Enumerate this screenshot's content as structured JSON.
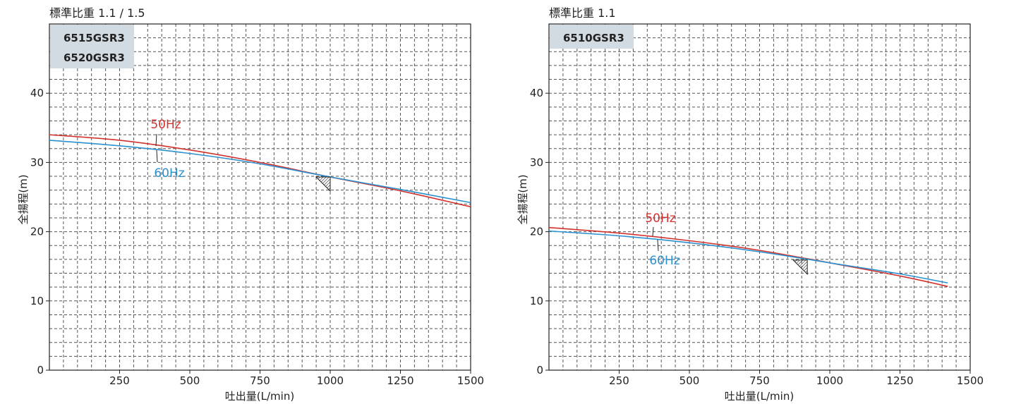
{
  "chart_data": [
    {
      "type": "line",
      "title": "標準比重 1.1 / 1.5",
      "models": [
        "6515GSR3",
        "6520GSR3"
      ],
      "xlabel": "吐出量(L/min)",
      "ylabel": "全揚程(m)",
      "xlim": [
        0,
        1500
      ],
      "ylim": [
        0,
        50
      ],
      "x_ticks": [
        250,
        500,
        750,
        1000,
        1250,
        1500
      ],
      "y_ticks": [
        0,
        10,
        20,
        30,
        40
      ],
      "grid": true,
      "series": [
        {
          "name": "50Hz",
          "color": "#d2322d",
          "x": [
            0,
            250,
            500,
            750,
            1000,
            1250,
            1500
          ],
          "y": [
            34.0,
            33.2,
            31.8,
            30.0,
            27.9,
            25.9,
            23.6
          ]
        },
        {
          "name": "60Hz",
          "color": "#2b90d0",
          "x": [
            0,
            250,
            500,
            750,
            1000,
            1250,
            1500
          ],
          "y": [
            33.2,
            32.4,
            31.3,
            29.8,
            27.9,
            26.1,
            24.2
          ]
        }
      ],
      "marker": {
        "x": 1000,
        "y": 28.0
      }
    },
    {
      "type": "line",
      "title": "標準比重 1.1",
      "models": [
        "6510GSR3"
      ],
      "xlabel": "吐出量(L/min)",
      "ylabel": "全揚程(m)",
      "xlim": [
        0,
        1500
      ],
      "ylim": [
        0,
        50
      ],
      "x_ticks": [
        250,
        500,
        750,
        1000,
        1250,
        1500
      ],
      "y_ticks": [
        0,
        10,
        20,
        30,
        40
      ],
      "grid": true,
      "series": [
        {
          "name": "50Hz",
          "color": "#d2322d",
          "x": [
            0,
            250,
            500,
            750,
            1000,
            1250,
            1420
          ],
          "y": [
            20.6,
            19.8,
            18.7,
            17.3,
            15.5,
            13.6,
            12.1
          ]
        },
        {
          "name": "60Hz",
          "color": "#2b90d0",
          "x": [
            0,
            250,
            500,
            750,
            1000,
            1250,
            1420
          ],
          "y": [
            20.1,
            19.4,
            18.4,
            17.1,
            15.5,
            13.9,
            12.6
          ]
        }
      ],
      "marker": {
        "x": 920,
        "y": 16.0
      }
    }
  ]
}
